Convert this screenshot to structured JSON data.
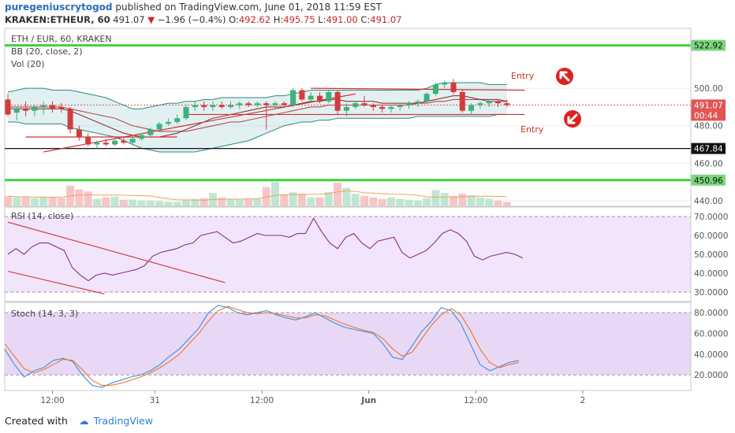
{
  "header": {
    "author": "puregeniuscrytogod",
    "published_text": "published on TradingView.com, June 01, 2018 11:59 EST",
    "symbol": "KRAKEN:ETHEUR, 60",
    "last": "491.07",
    "change": "−1.96 (−0.4%)",
    "o_label": "O:",
    "o_value": "492.62",
    "h_label": "H:",
    "h_value": "495.75",
    "l_label": "L:",
    "l_value": "491.00",
    "c_label": "C:",
    "c_value": "491.07"
  },
  "indicators": {
    "pair": "ETH / EUR, 60, KRAKEN",
    "bb": "BB (20, close, 2)",
    "vol": "Vol (20)",
    "rsi": "RSI (14, close)",
    "stoch": "Stoch (14, 3, 3)"
  },
  "annotations": {
    "entry_top": "Entry",
    "entry_bottom": "Entry"
  },
  "footer": {
    "created": "Created with",
    "brand": "TradingView"
  },
  "chart_data": [
    {
      "type": "candlestick",
      "pane": "price",
      "title": "ETH / EUR, 60, KRAKEN",
      "ylim": [
        437,
        532
      ],
      "price_ticks": [
        "500.00",
        "480.00",
        "460.00",
        "440.00"
      ],
      "tick_values": [
        500,
        480,
        460,
        440
      ],
      "x_ticks": [
        "12:00",
        "31",
        "12:00",
        "Jun",
        "12:00",
        "2"
      ],
      "x_tick_index": [
        5.0,
        16.5,
        28.5,
        40.5,
        52.5,
        64.5
      ],
      "candles": [
        {
          "o": 494,
          "h": 497,
          "l": 485,
          "c": 486
        },
        {
          "o": 487,
          "h": 490,
          "l": 483,
          "c": 489
        },
        {
          "o": 489,
          "h": 493,
          "l": 485,
          "c": 488
        },
        {
          "o": 488,
          "h": 491,
          "l": 485,
          "c": 490
        },
        {
          "o": 490,
          "h": 493,
          "l": 486,
          "c": 491
        },
        {
          "o": 491,
          "h": 493,
          "l": 487,
          "c": 489
        },
        {
          "o": 490,
          "h": 492,
          "l": 487,
          "c": 489
        },
        {
          "o": 489,
          "h": 490,
          "l": 476,
          "c": 478
        },
        {
          "o": 478,
          "h": 480,
          "l": 472,
          "c": 474
        },
        {
          "o": 474,
          "h": 476,
          "l": 469,
          "c": 470
        },
        {
          "o": 470,
          "h": 472,
          "l": 468,
          "c": 471
        },
        {
          "o": 471,
          "h": 473,
          "l": 469,
          "c": 470
        },
        {
          "o": 470,
          "h": 473,
          "l": 469,
          "c": 472
        },
        {
          "o": 472,
          "h": 474,
          "l": 470,
          "c": 471
        },
        {
          "o": 471,
          "h": 474,
          "l": 470,
          "c": 473
        },
        {
          "o": 473,
          "h": 476,
          "l": 472,
          "c": 475
        },
        {
          "o": 475,
          "h": 479,
          "l": 474,
          "c": 478
        },
        {
          "o": 478,
          "h": 482,
          "l": 477,
          "c": 481
        },
        {
          "o": 481,
          "h": 484,
          "l": 480,
          "c": 482
        },
        {
          "o": 482,
          "h": 486,
          "l": 481,
          "c": 484
        },
        {
          "o": 484,
          "h": 491,
          "l": 483,
          "c": 490
        },
        {
          "o": 490,
          "h": 493,
          "l": 488,
          "c": 491
        },
        {
          "o": 491,
          "h": 493,
          "l": 488,
          "c": 490
        },
        {
          "o": 490,
          "h": 493,
          "l": 488,
          "c": 491
        },
        {
          "o": 491,
          "h": 493,
          "l": 489,
          "c": 490
        },
        {
          "o": 490,
          "h": 493,
          "l": 489,
          "c": 491
        },
        {
          "o": 491,
          "h": 493,
          "l": 489,
          "c": 492
        },
        {
          "o": 492,
          "h": 493,
          "l": 490,
          "c": 491
        },
        {
          "o": 491,
          "h": 493,
          "l": 490,
          "c": 492
        },
        {
          "o": 492,
          "h": 493,
          "l": 478,
          "c": 491
        },
        {
          "o": 491,
          "h": 493,
          "l": 489,
          "c": 492
        },
        {
          "o": 492,
          "h": 493,
          "l": 490,
          "c": 491
        },
        {
          "o": 491,
          "h": 500,
          "l": 490,
          "c": 499
        },
        {
          "o": 499,
          "h": 500,
          "l": 493,
          "c": 494
        },
        {
          "o": 494,
          "h": 498,
          "l": 493,
          "c": 496
        },
        {
          "o": 496,
          "h": 498,
          "l": 492,
          "c": 493
        },
        {
          "o": 493,
          "h": 499,
          "l": 492,
          "c": 498
        },
        {
          "o": 498,
          "h": 499,
          "l": 486,
          "c": 488
        },
        {
          "o": 488,
          "h": 492,
          "l": 485,
          "c": 490
        },
        {
          "o": 490,
          "h": 493,
          "l": 489,
          "c": 492
        },
        {
          "o": 492,
          "h": 496,
          "l": 490,
          "c": 491
        },
        {
          "o": 491,
          "h": 492,
          "l": 488,
          "c": 490
        },
        {
          "o": 490,
          "h": 491,
          "l": 487,
          "c": 489
        },
        {
          "o": 489,
          "h": 491,
          "l": 487,
          "c": 490
        },
        {
          "o": 490,
          "h": 492,
          "l": 488,
          "c": 491
        },
        {
          "o": 491,
          "h": 493,
          "l": 489,
          "c": 492
        },
        {
          "o": 492,
          "h": 494,
          "l": 490,
          "c": 493
        },
        {
          "o": 493,
          "h": 498,
          "l": 492,
          "c": 497
        },
        {
          "o": 497,
          "h": 503,
          "l": 496,
          "c": 502
        },
        {
          "o": 502,
          "h": 504,
          "l": 500,
          "c": 503
        },
        {
          "o": 503,
          "h": 505,
          "l": 497,
          "c": 498
        },
        {
          "o": 498,
          "h": 499,
          "l": 487,
          "c": 488
        },
        {
          "o": 488,
          "h": 492,
          "l": 486,
          "c": 491
        },
        {
          "o": 491,
          "h": 493,
          "l": 489,
          "c": 492
        },
        {
          "o": 492,
          "h": 494,
          "l": 490,
          "c": 493
        },
        {
          "o": 493,
          "h": 494,
          "l": 490,
          "c": 492
        },
        {
          "o": 492,
          "h": 494,
          "l": 490,
          "c": 491
        }
      ],
      "bb_upper": [
        498,
        499,
        500,
        500,
        500,
        499,
        499,
        499,
        498,
        497,
        496,
        495,
        493,
        491,
        489,
        489,
        490,
        491,
        492,
        492,
        493,
        493,
        494,
        494,
        495,
        495,
        495,
        495,
        495,
        495,
        496,
        496,
        497,
        498,
        499,
        499,
        499,
        499,
        499,
        499,
        499,
        499,
        499,
        499,
        499,
        499,
        499,
        500,
        502,
        503,
        503,
        503,
        503,
        503,
        502,
        502,
        502
      ],
      "bb_middle": [
        490,
        490,
        490,
        490,
        490,
        490,
        490,
        489,
        488,
        487,
        486,
        485,
        484,
        482,
        480,
        479,
        478,
        477,
        477,
        477,
        477,
        478,
        479,
        480,
        481,
        482,
        482,
        483,
        484,
        485,
        486,
        487,
        488,
        489,
        490,
        490,
        491,
        491,
        491,
        491,
        491,
        491,
        491,
        491,
        491,
        491,
        492,
        492,
        493,
        493,
        494,
        494,
        494,
        494,
        493,
        493,
        493
      ],
      "bb_lower": [
        482,
        482,
        481,
        481,
        481,
        481,
        481,
        479,
        478,
        477,
        476,
        475,
        474,
        472,
        470,
        468,
        467,
        466,
        466,
        466,
        466,
        466,
        467,
        468,
        469,
        470,
        471,
        472,
        474,
        476,
        478,
        480,
        481,
        482,
        482,
        483,
        483,
        484,
        484,
        484,
        484,
        484,
        484,
        484,
        484,
        484,
        485,
        485,
        485,
        485,
        485,
        485,
        485,
        485,
        485,
        486,
        486
      ],
      "sma_short": [
        489,
        489,
        489,
        489,
        489,
        489,
        489,
        488,
        486,
        484,
        482,
        480,
        478,
        476,
        475,
        474,
        474,
        474,
        475,
        476,
        478,
        480,
        482,
        484,
        485,
        486,
        487,
        488,
        489,
        490,
        490,
        490,
        491,
        492,
        493,
        493,
        494,
        494,
        493,
        493,
        493,
        493,
        492,
        492,
        492,
        492,
        492,
        493,
        494,
        495,
        496,
        496,
        495,
        494,
        494,
        494,
        493
      ],
      "last_price": 491.07,
      "price_labels": [
        {
          "label": "522.92",
          "value": 522.92,
          "color": "#7bd67b"
        },
        {
          "label": "491.07",
          "value": 491.07,
          "color": "#e05555"
        },
        {
          "label": "00:44",
          "value": 485.6,
          "color": "#e05555"
        },
        {
          "label": "467.84",
          "value": 467.84,
          "color": "#111111"
        },
        {
          "label": "450.96",
          "value": 450.96,
          "color": "#7bd67b"
        }
      ],
      "horizontal_levels": [
        {
          "value": 522.92,
          "color": "#3cd23c",
          "width": 3
        },
        {
          "value": 467.84,
          "color": "#111111",
          "width": 1.2
        },
        {
          "value": 450.96,
          "color": "#3cd23c",
          "width": 3
        }
      ],
      "trend_lines": [
        {
          "i1": 2,
          "p1": 474,
          "i2": 19,
          "p2": 474
        },
        {
          "i1": 4,
          "p1": 466,
          "i2": 39,
          "p2": 497
        },
        {
          "i1": 20,
          "p1": 486,
          "i2": 58,
          "p2": 486
        },
        {
          "i1": 34,
          "p1": 500,
          "i2": 58,
          "p2": 499
        }
      ],
      "volume": [
        14,
        12,
        13,
        11,
        12,
        12,
        11,
        28,
        23,
        20,
        10,
        12,
        13,
        9,
        9,
        8,
        8,
        7,
        6,
        6,
        9,
        10,
        11,
        18,
        12,
        10,
        9,
        10,
        10,
        26,
        33,
        16,
        19,
        17,
        12,
        12,
        19,
        32,
        25,
        17,
        14,
        12,
        10,
        12,
        10,
        9,
        8,
        11,
        22,
        18,
        14,
        17,
        15,
        12,
        10,
        8,
        6
      ],
      "volume_ylim": [
        0,
        60
      ]
    },
    {
      "type": "line",
      "pane": "rsi",
      "title": "RSI (14, close)",
      "ylim": [
        25,
        75
      ],
      "y_ticks": [
        "70.0000",
        "60.0000",
        "50.0000",
        "40.0000",
        "30.0000"
      ],
      "tick_values": [
        70,
        60,
        50,
        40,
        30
      ],
      "band": [
        30,
        70
      ],
      "values": [
        50,
        53,
        50,
        54,
        56,
        56,
        54,
        52,
        43,
        39,
        36,
        39,
        40,
        39,
        40,
        41,
        42,
        44,
        49,
        51,
        52,
        53,
        55,
        56,
        60,
        61,
        62,
        59,
        56,
        57,
        59,
        61,
        60,
        60,
        60,
        59,
        61,
        61,
        69,
        62,
        56,
        53,
        59,
        61,
        56,
        53,
        57,
        58,
        59,
        51,
        48,
        50,
        52,
        56,
        61,
        63,
        61,
        57,
        49,
        47,
        49,
        50,
        51,
        50,
        48
      ],
      "drawing_lines": [
        {
          "i1": 0,
          "v1": 67,
          "i2": 27,
          "v2": 35
        },
        {
          "i1": 0,
          "v1": 41,
          "i2": 12,
          "v2": 29
        }
      ]
    },
    {
      "type": "line",
      "pane": "stoch",
      "title": "Stoch (14, 3, 3)",
      "ylim": [
        5,
        90
      ],
      "y_ticks": [
        "80.0000",
        "60.0000",
        "40.0000",
        "20.0000"
      ],
      "tick_values": [
        80,
        60,
        40,
        20
      ],
      "band": [
        20,
        80
      ],
      "series": [
        {
          "values": [
            45,
            30,
            18,
            24,
            27,
            34,
            36,
            33,
            20,
            10,
            8,
            12,
            15,
            18,
            20,
            24,
            30,
            38,
            45,
            55,
            65,
            80,
            87,
            85,
            80,
            78,
            80,
            82,
            78,
            75,
            73,
            76,
            80,
            75,
            70,
            66,
            64,
            62,
            60,
            50,
            37,
            35,
            48,
            62,
            72,
            85,
            82,
            70,
            50,
            30,
            24,
            28,
            32,
            34
          ]
        },
        {
          "values": [
            50,
            38,
            26,
            22,
            25,
            30,
            35,
            34,
            25,
            15,
            10,
            10,
            12,
            15,
            18,
            22,
            27,
            33,
            40,
            50,
            60,
            72,
            82,
            86,
            83,
            80,
            79,
            80,
            79,
            77,
            75,
            75,
            78,
            77,
            73,
            69,
            66,
            63,
            61,
            55,
            45,
            38,
            42,
            55,
            68,
            78,
            84,
            78,
            63,
            45,
            32,
            27,
            30,
            32
          ]
        }
      ]
    }
  ]
}
